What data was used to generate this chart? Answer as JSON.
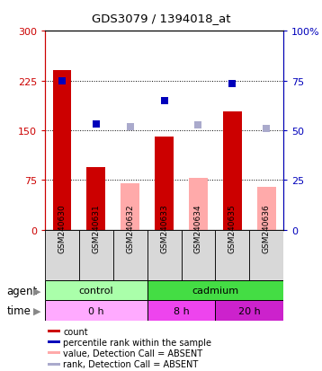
{
  "title": "GDS3079 / 1394018_at",
  "samples": [
    "GSM240630",
    "GSM240631",
    "GSM240632",
    "GSM240633",
    "GSM240634",
    "GSM240635",
    "GSM240636"
  ],
  "bar_values_red": [
    240,
    95,
    null,
    140,
    null,
    178,
    null
  ],
  "bar_values_pink": [
    null,
    null,
    70,
    null,
    78,
    null,
    65
  ],
  "scatter_blue_left": [
    225,
    160,
    null,
    195,
    null,
    220,
    null
  ],
  "scatter_lavender_left": [
    null,
    null,
    155,
    null,
    158,
    null,
    152
  ],
  "ylim_left": [
    0,
    300
  ],
  "ylim_right": [
    0,
    100
  ],
  "yticks_left": [
    0,
    75,
    150,
    225,
    300
  ],
  "yticks_right": [
    0,
    25,
    50,
    75,
    100
  ],
  "ytick_labels_left": [
    "0",
    "75",
    "150",
    "225",
    "300"
  ],
  "ytick_labels_right": [
    "0",
    "25",
    "50",
    "75",
    "100%"
  ],
  "color_red": "#cc0000",
  "color_pink": "#ffaaaa",
  "color_blue": "#0000bb",
  "color_lavender": "#aaaacc",
  "agent_groups": [
    {
      "label": "control",
      "start": 0,
      "end": 3,
      "color": "#aaffaa"
    },
    {
      "label": "cadmium",
      "start": 3,
      "end": 7,
      "color": "#44dd44"
    }
  ],
  "time_groups": [
    {
      "label": "0 h",
      "start": 0,
      "end": 3,
      "color": "#ffaaff"
    },
    {
      "label": "8 h",
      "start": 3,
      "end": 5,
      "color": "#ee44ee"
    },
    {
      "label": "20 h",
      "start": 5,
      "end": 7,
      "color": "#cc22cc"
    }
  ],
  "legend_items": [
    {
      "label": "count",
      "color": "#cc0000"
    },
    {
      "label": "percentile rank within the sample",
      "color": "#0000bb"
    },
    {
      "label": "value, Detection Call = ABSENT",
      "color": "#ffaaaa"
    },
    {
      "label": "rank, Detection Call = ABSENT",
      "color": "#aaaacc"
    }
  ],
  "grid_yticks": [
    75,
    150,
    225
  ],
  "plot_bg": "#ffffff",
  "bar_width": 0.55
}
